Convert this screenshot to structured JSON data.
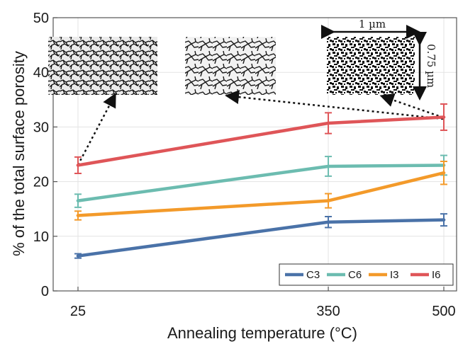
{
  "chart_data": {
    "type": "line",
    "xlabel": "Annealing temperature (°C)",
    "ylabel": "% of the total surface porosity",
    "x": [
      25,
      350,
      500
    ],
    "x_tick_labels": [
      "25",
      "350",
      "500"
    ],
    "y_ticks": [
      0,
      10,
      20,
      30,
      40,
      50
    ],
    "xlim": [
      25,
      500
    ],
    "ylim": [
      0,
      50
    ],
    "grid": true,
    "legend_position": "bottom-right",
    "series": [
      {
        "name": "C3",
        "color": "#4a72a8",
        "values": [
          6.4,
          12.6,
          13.0
        ],
        "errors": [
          0.4,
          1.0,
          1.1
        ]
      },
      {
        "name": "C6",
        "color": "#6cbcb0",
        "values": [
          16.5,
          22.8,
          23.0
        ],
        "errors": [
          1.2,
          1.8,
          1.8
        ]
      },
      {
        "name": "I3",
        "color": "#f39a2a",
        "values": [
          13.8,
          16.5,
          21.6
        ],
        "errors": [
          0.8,
          1.3,
          2.1
        ]
      },
      {
        "name": "I6",
        "color": "#df5558",
        "values": [
          23.0,
          30.7,
          31.8
        ],
        "errors": [
          1.5,
          1.9,
          2.4
        ]
      }
    ],
    "annotations": {
      "scale_width": "1 µm",
      "scale_height": "0.75 µm",
      "insets": [
        {
          "name": "inset-25",
          "points_to": {
            "x": 25,
            "y": 23.0
          }
        },
        {
          "name": "inset-350",
          "points_to": {
            "x": 500,
            "y": 31.5
          }
        },
        {
          "name": "inset-500",
          "points_to": {
            "x": 500,
            "y": 31.8
          }
        }
      ]
    }
  }
}
